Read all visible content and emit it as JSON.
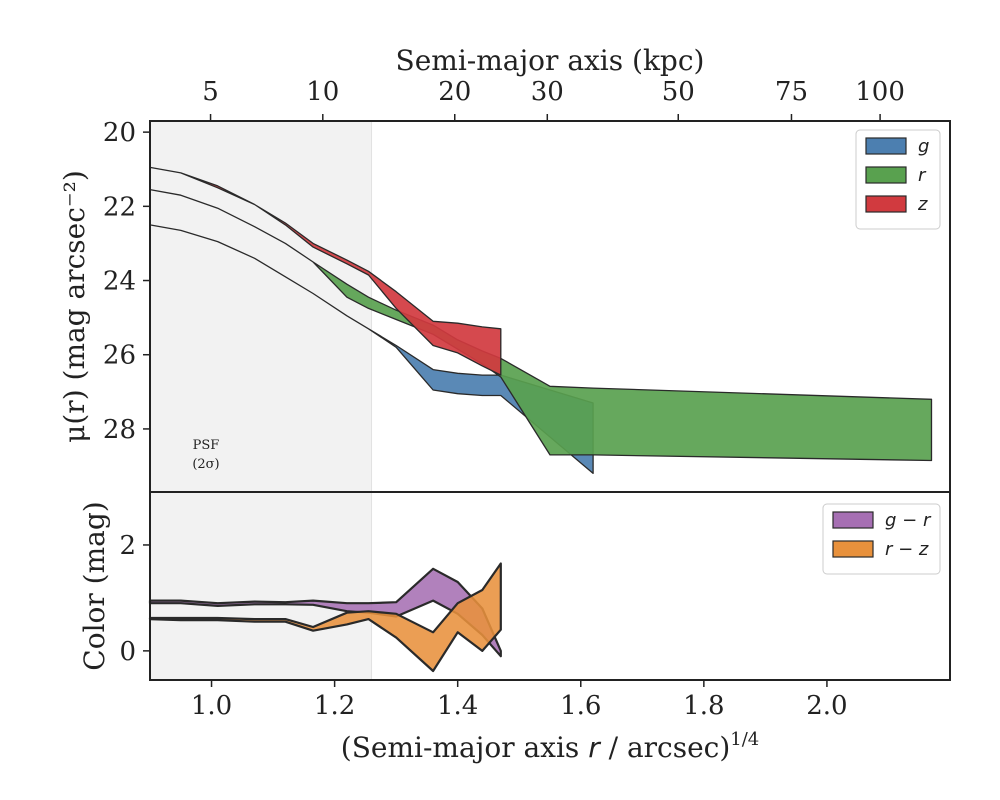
{
  "chart_data": [
    {
      "type": "area",
      "name": "surface-brightness-profile",
      "top_axis": {
        "label": "Semi-major axis (kpc)",
        "ticks": [
          {
            "label": "5",
            "value": 0.9984
          },
          {
            "label": "10",
            "value": 1.1808
          },
          {
            "label": "20",
            "value": 1.3952
          },
          {
            "label": "30",
            "value": 1.5456
          },
          {
            "label": "50",
            "value": 1.7584
          },
          {
            "label": "75",
            "value": 1.9424
          },
          {
            "label": "100",
            "value": 2.0864
          }
        ]
      },
      "xlim": [
        0.9,
        2.2
      ],
      "ylabel": "μ(r) (mag arcsec⁻²)",
      "ylim": [
        29.7,
        19.7
      ],
      "y_inverted": true,
      "yticks": [
        20,
        22,
        24,
        26,
        28
      ],
      "yticklabels": [
        "20",
        "22",
        "24",
        "26",
        "28"
      ],
      "psf_region": {
        "x_max": 1.26,
        "label_line1": "PSF",
        "label_line2": "(2σ)"
      },
      "legend": {
        "placement": "upper-right",
        "entries": [
          "g",
          "r",
          "z"
        ]
      },
      "series": [
        {
          "name": "g",
          "color": "#4c7fb0",
          "x": [
            0.9,
            0.95,
            1.01,
            1.07,
            1.12,
            1.165,
            1.22,
            1.255,
            1.3,
            1.36,
            1.4,
            1.44,
            1.47,
            1.62
          ],
          "y_lo": [
            22.5,
            22.65,
            22.95,
            23.4,
            23.9,
            24.35,
            24.95,
            25.3,
            25.75,
            26.4,
            26.5,
            26.55,
            26.55,
            27.3
          ],
          "y_hi": [
            22.5,
            22.65,
            22.95,
            23.4,
            23.9,
            24.35,
            24.95,
            25.3,
            25.8,
            26.95,
            27.05,
            27.1,
            27.1,
            29.2
          ]
        },
        {
          "name": "r",
          "color": "#59a14f",
          "x": [
            0.9,
            0.95,
            1.01,
            1.07,
            1.12,
            1.165,
            1.22,
            1.255,
            1.3,
            1.36,
            1.4,
            1.44,
            1.47,
            1.55,
            1.62,
            2.17
          ],
          "y_lo": [
            21.55,
            21.7,
            22.05,
            22.55,
            23.0,
            23.5,
            24.1,
            24.45,
            24.8,
            25.2,
            25.6,
            25.9,
            26.1,
            26.85,
            26.9,
            27.2
          ],
          "y_hi": [
            21.55,
            21.7,
            22.05,
            22.55,
            23.0,
            23.5,
            24.45,
            24.75,
            25.05,
            25.45,
            25.85,
            26.25,
            26.6,
            28.7,
            28.7,
            28.85
          ]
        },
        {
          "name": "z",
          "color": "#d13a3f",
          "x": [
            0.9,
            0.95,
            1.01,
            1.07,
            1.12,
            1.165,
            1.22,
            1.255,
            1.3,
            1.36,
            1.4,
            1.44,
            1.47
          ],
          "y_lo": [
            20.95,
            21.1,
            21.45,
            21.95,
            22.45,
            23.0,
            23.45,
            23.75,
            24.3,
            25.1,
            25.15,
            25.25,
            25.3
          ],
          "y_hi": [
            20.95,
            21.1,
            21.5,
            21.95,
            22.5,
            23.1,
            23.55,
            23.85,
            24.75,
            25.75,
            25.95,
            26.3,
            26.55
          ]
        }
      ]
    },
    {
      "type": "area",
      "name": "color-profile",
      "xlabel": "(Semi-major axis r / arcsec)^1/4",
      "xlabel_main": "(Semi-major axis ",
      "xlabel_var": "r",
      "xlabel_rest": " / arcsec)",
      "xlabel_sup": "1/4",
      "xlim": [
        0.9,
        2.2
      ],
      "xticks": [
        1.0,
        1.2,
        1.4,
        1.6,
        1.8,
        2.0
      ],
      "xticklabels": [
        "1.0",
        "1.2",
        "1.4",
        "1.6",
        "1.8",
        "2.0"
      ],
      "ylabel": "Color (mag)",
      "ylim": [
        -0.55,
        3.0
      ],
      "yticks": [
        0,
        2
      ],
      "yticklabels": [
        "0",
        "2"
      ],
      "legend": {
        "placement": "upper-right",
        "entries": [
          "g − r",
          "r − z"
        ]
      },
      "series": [
        {
          "name": "g − r",
          "color": "#a66fb3",
          "x": [
            0.9,
            0.95,
            1.01,
            1.07,
            1.12,
            1.165,
            1.22,
            1.255,
            1.3,
            1.36,
            1.4,
            1.44,
            1.47
          ],
          "y_lo": [
            0.9,
            0.9,
            0.85,
            0.88,
            0.88,
            0.87,
            0.75,
            0.72,
            0.65,
            0.95,
            0.7,
            0.3,
            -0.1
          ],
          "y_hi": [
            0.95,
            0.95,
            0.9,
            0.93,
            0.92,
            0.95,
            0.9,
            0.9,
            0.92,
            1.55,
            1.3,
            0.8,
            0.0
          ]
        },
        {
          "name": "r − z",
          "color": "#e8913c",
          "x": [
            0.9,
            0.95,
            1.01,
            1.07,
            1.12,
            1.165,
            1.22,
            1.255,
            1.3,
            1.36,
            1.4,
            1.44,
            1.47
          ],
          "y_lo": [
            0.6,
            0.58,
            0.58,
            0.55,
            0.55,
            0.38,
            0.5,
            0.6,
            0.25,
            -0.38,
            0.35,
            0.0,
            0.4
          ],
          "y_hi": [
            0.62,
            0.62,
            0.62,
            0.6,
            0.6,
            0.45,
            0.72,
            0.75,
            0.7,
            0.35,
            0.9,
            1.15,
            1.65
          ]
        }
      ]
    }
  ]
}
